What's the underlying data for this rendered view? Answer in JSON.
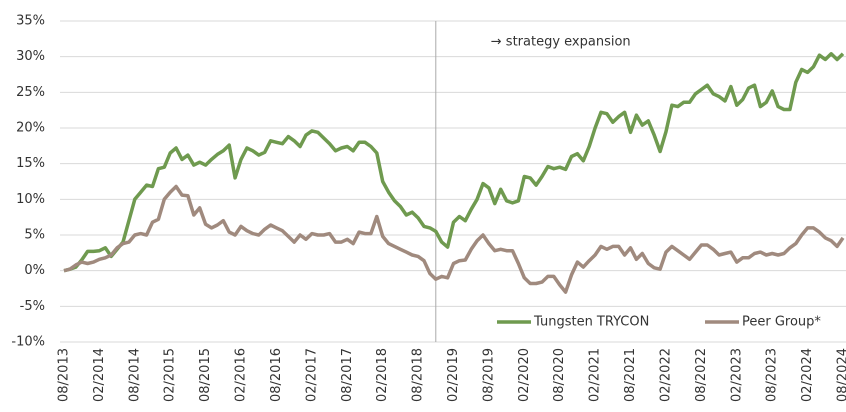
{
  "chart_data": {
    "type": "line",
    "categories": [
      "08/2013",
      null,
      null,
      null,
      null,
      null,
      "02/2014",
      null,
      null,
      null,
      null,
      null,
      "08/2014",
      null,
      null,
      null,
      null,
      null,
      "02/2015",
      null,
      null,
      null,
      null,
      null,
      "08/2015",
      null,
      null,
      null,
      null,
      null,
      "02/2016",
      null,
      null,
      null,
      null,
      null,
      "08/2016",
      null,
      null,
      null,
      null,
      null,
      "02/2017",
      null,
      null,
      null,
      null,
      null,
      "08/2017",
      null,
      null,
      null,
      null,
      null,
      "02/2018",
      null,
      null,
      null,
      null,
      null,
      "08/2018",
      null,
      null,
      null,
      null,
      null,
      "02/2019",
      null,
      null,
      null,
      null,
      null,
      "08/2019",
      null,
      null,
      null,
      null,
      null,
      "02/2020",
      null,
      null,
      null,
      null,
      null,
      "08/2020",
      null,
      null,
      null,
      null,
      null,
      "02/2021",
      null,
      null,
      null,
      null,
      null,
      "08/2021",
      null,
      null,
      null,
      null,
      null,
      "02/2022",
      null,
      null,
      null,
      null,
      null,
      "08/2022",
      null,
      null,
      null,
      null,
      null,
      "02/2023",
      null,
      null,
      null,
      null,
      null,
      "08/2023",
      null,
      null,
      null,
      null,
      null,
      "02/2024",
      null,
      null,
      null,
      null,
      null,
      "08/2024"
    ],
    "series": [
      {
        "name": "Tungsten TRYCON",
        "color": "#6f9a4f",
        "values": [
          0,
          0.2,
          0.5,
          1.5,
          2.7,
          2.7,
          2.8,
          3.2,
          2,
          3,
          4,
          7,
          10,
          11,
          12,
          11.8,
          14.3,
          14.5,
          16.5,
          17.2,
          15.6,
          16.2,
          14.8,
          15.2,
          14.8,
          15.6,
          16.3,
          16.8,
          17.6,
          13,
          15.6,
          17.2,
          16.8,
          16.2,
          16.6,
          18.2,
          18,
          17.8,
          18.8,
          18.2,
          17.4,
          19,
          19.6,
          19.4,
          18.6,
          17.8,
          16.8,
          17.2,
          17.4,
          16.8,
          18,
          18,
          17.4,
          16.5,
          12.5,
          11,
          9.8,
          9,
          7.8,
          8.2,
          7.4,
          6.2,
          6,
          5.5,
          4,
          3.3,
          6.8,
          7.6,
          7,
          8.6,
          10,
          12.2,
          11.6,
          9.4,
          11.4,
          9.8,
          9.5,
          9.8,
          13.2,
          13,
          12,
          13.2,
          14.6,
          14.3,
          14.5,
          14.2,
          16,
          16.4,
          15.4,
          17.4,
          20,
          22.2,
          22,
          20.8,
          21.6,
          22.2,
          19.4,
          21.8,
          20.4,
          21,
          19,
          16.7,
          19.5,
          23.2,
          23,
          23.6,
          23.6,
          24.8,
          25.4,
          26,
          24.8,
          24.4,
          23.8,
          25.8,
          23.2,
          24,
          25.6,
          26,
          23,
          23.6,
          25.2,
          23,
          22.6,
          22.6,
          26.4,
          28.2,
          27.8,
          28.6,
          30.2,
          29.6,
          30.4,
          29.6,
          30.4
        ]
      },
      {
        "name": "Peer Group*",
        "color": "#a08a7e",
        "values": [
          0,
          0.2,
          0.8,
          1.2,
          1,
          1.2,
          1.6,
          1.8,
          2.2,
          3.2,
          3.8,
          4,
          5,
          5.2,
          5,
          6.8,
          7.2,
          10,
          11,
          11.8,
          10.6,
          10.5,
          7.8,
          8.8,
          6.5,
          6,
          6.4,
          7,
          5.4,
          5,
          6.2,
          5.6,
          5.2,
          5,
          5.8,
          6.4,
          6,
          5.6,
          4.8,
          4,
          5,
          4.4,
          5.2,
          5,
          5,
          5.2,
          4,
          4,
          4.4,
          3.8,
          5.4,
          5.2,
          5.2,
          7.6,
          4.8,
          3.8,
          3.4,
          3,
          2.6,
          2.2,
          2,
          1.4,
          -0.4,
          -1.2,
          -0.8,
          -1,
          1,
          1.4,
          1.5,
          3,
          4.2,
          5,
          3.8,
          2.8,
          3,
          2.8,
          2.8,
          1,
          -1,
          -1.8,
          -1.8,
          -1.6,
          -0.8,
          -0.8,
          -2,
          -3,
          -0.6,
          1.2,
          0.5,
          1.4,
          2.2,
          3.4,
          3,
          3.4,
          3.4,
          2.2,
          3.2,
          1.6,
          2.4,
          1,
          0.4,
          0.2,
          2.6,
          3.4,
          2.8,
          2.2,
          1.6,
          2.6,
          3.6,
          3.6,
          3,
          2.2,
          2.4,
          2.6,
          1.2,
          1.8,
          1.8,
          2.4,
          2.6,
          2.2,
          2.4,
          2.2,
          2.4,
          3.2,
          3.8,
          5,
          6,
          6,
          5.4,
          4.6,
          4.2,
          3.4,
          4.6
        ]
      }
    ],
    "ylim": [
      -10,
      35
    ],
    "yticks": [
      {
        "value": -10,
        "label": "-10%"
      },
      {
        "value": -5,
        "label": "-5%"
      },
      {
        "value": 0,
        "label": "0%"
      },
      {
        "value": 5,
        "label": "5%"
      },
      {
        "value": 10,
        "label": "10%"
      },
      {
        "value": 15,
        "label": "15%"
      },
      {
        "value": 20,
        "label": "20%"
      },
      {
        "value": 25,
        "label": "25%"
      },
      {
        "value": 30,
        "label": "30%"
      },
      {
        "value": 35,
        "label": "35%"
      }
    ],
    "grid": true,
    "legend": "lower right",
    "annotation": {
      "text": "→ strategy expansion",
      "x_index": 63
    }
  }
}
